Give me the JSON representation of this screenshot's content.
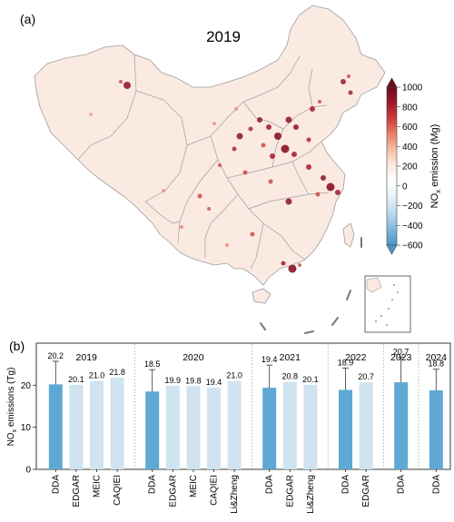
{
  "panel_a": {
    "label": "(a)",
    "year": "2019",
    "colorbar": {
      "label_prefix": "NO",
      "label_sub": "x",
      "label_suffix": " emission (Mg)",
      "ticks": [
        "1000",
        "800",
        "600",
        "400",
        "200",
        "0",
        "−200",
        "−400",
        "−600"
      ],
      "ramp_colors": [
        "#6b0a1e",
        "#a3182c",
        "#cc3f3a",
        "#ea826a",
        "#f7c1a6",
        "#fcece4",
        "#ffffff",
        "#e5f0f8",
        "#bad8ec",
        "#7fb6dd",
        "#4a95cc"
      ],
      "range": [
        -600,
        1000
      ]
    }
  },
  "panel_b": {
    "label": "(b)",
    "ylabel": "NO",
    "ylabel_sub": "x",
    "ylabel_suffix": " emissions (Tg)"
  },
  "colors": {
    "dda": "#5fa8d4",
    "inventory": "#cfe4f0",
    "map_fill": "#fbeae2",
    "map_border": "#9e9e9e",
    "hotspot": "#8b1226"
  },
  "chart_data": {
    "type": "bar",
    "ylim": [
      0,
      30
    ],
    "yticks": [
      "0",
      "10",
      "20"
    ],
    "groups": [
      {
        "year": "2019",
        "bars": [
          {
            "label": "DDA",
            "value": 20.2,
            "value_label": "20.2",
            "error": 5.5,
            "kind": "dda"
          },
          {
            "label": "EDGAR",
            "value": 20.1,
            "value_label": "20.1",
            "kind": "inventory"
          },
          {
            "label": "MEIC",
            "value": 21.0,
            "value_label": "21.0",
            "kind": "inventory"
          },
          {
            "label": "CAQIEI",
            "value": 21.8,
            "value_label": "21.8",
            "kind": "inventory"
          }
        ]
      },
      {
        "year": "2020",
        "bars": [
          {
            "label": "DDA",
            "value": 18.5,
            "value_label": "18.5",
            "error": 5.2,
            "kind": "dda"
          },
          {
            "label": "EDGAR",
            "value": 19.9,
            "value_label": "19.9",
            "kind": "inventory"
          },
          {
            "label": "MEIC",
            "value": 19.8,
            "value_label": "19.8",
            "kind": "inventory"
          },
          {
            "label": "CAQIEI",
            "value": 19.4,
            "value_label": "19.4",
            "kind": "inventory"
          },
          {
            "label": "Li&Zheng",
            "value": 21.0,
            "value_label": "21.0",
            "kind": "inventory"
          }
        ]
      },
      {
        "year": "2021",
        "bars": [
          {
            "label": "DDA",
            "value": 19.4,
            "value_label": "19.4",
            "error": 5.4,
            "kind": "dda"
          },
          {
            "label": "EDGAR",
            "value": 20.8,
            "value_label": "20.8",
            "kind": "inventory"
          },
          {
            "label": "Li&Zheng",
            "value": 20.1,
            "value_label": "20.1",
            "kind": "inventory"
          }
        ]
      },
      {
        "year": "2022",
        "bars": [
          {
            "label": "DDA",
            "value": 18.9,
            "value_label": "18.9",
            "error": 5.2,
            "kind": "dda"
          },
          {
            "label": "EDGAR",
            "value": 20.7,
            "value_label": "20.7",
            "kind": "inventory"
          }
        ]
      },
      {
        "year": "2023",
        "bars": [
          {
            "label": "DDA",
            "value": 20.7,
            "value_label": "20.7",
            "error": 6.0,
            "kind": "dda"
          }
        ]
      },
      {
        "year": "2024",
        "bars": [
          {
            "label": "DDA",
            "value": 18.8,
            "value_label": "18.8",
            "error": 5.0,
            "kind": "dda"
          }
        ]
      }
    ]
  }
}
